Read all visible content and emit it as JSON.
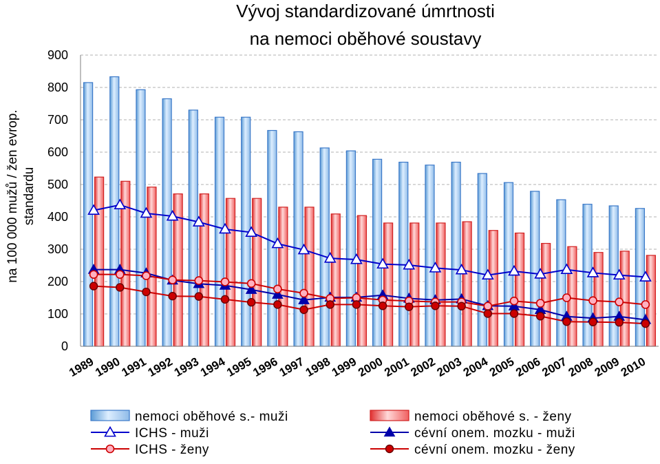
{
  "chart_data": {
    "type": "bar",
    "title": [
      "Vývoj standardizované úmrtnosti",
      "na nemoci oběhové soustavy"
    ],
    "ylabel": [
      "na 100 000 mužů / žen evrop.",
      "standardu"
    ],
    "xlabel": "",
    "ylim": [
      0,
      900
    ],
    "yticks": [
      0,
      100,
      200,
      300,
      400,
      500,
      600,
      700,
      800,
      900
    ],
    "grid": true,
    "legend_position": "bottom",
    "categories": [
      "1989",
      "1990",
      "1991",
      "1992",
      "1993",
      "1994",
      "1995",
      "1996",
      "1997",
      "1998",
      "1999",
      "2000",
      "2001",
      "2002",
      "2003",
      "2004",
      "2005",
      "2006",
      "2007",
      "2008",
      "2009",
      "2010"
    ],
    "series": [
      {
        "name": "nemoci oběhové s.- muži",
        "kind": "bar",
        "color": "#5b9bd5",
        "values": [
          815,
          833,
          793,
          765,
          730,
          708,
          708,
          667,
          663,
          613,
          604,
          578,
          569,
          560,
          569,
          534,
          506,
          479,
          453,
          439,
          434,
          426
        ]
      },
      {
        "name": "nemoci oběhové s. - ženy",
        "kind": "bar",
        "color": "#e03030",
        "values": [
          523,
          510,
          492,
          471,
          471,
          457,
          457,
          430,
          430,
          409,
          404,
          381,
          381,
          381,
          385,
          358,
          350,
          318,
          308,
          290,
          294,
          281
        ]
      },
      {
        "name": "ICHS - muži",
        "kind": "line",
        "marker": "triangle-open",
        "color": "#0000cc",
        "values": [
          420,
          437,
          411,
          402,
          384,
          362,
          352,
          317,
          298,
          272,
          268,
          254,
          251,
          242,
          236,
          220,
          232,
          223,
          237,
          227,
          220,
          214
        ]
      },
      {
        "name": "cévní onem. mozku - muži",
        "kind": "line",
        "marker": "triangle-filled",
        "color": "#0000aa",
        "values": [
          237,
          237,
          226,
          204,
          193,
          188,
          175,
          160,
          143,
          151,
          151,
          158,
          148,
          143,
          146,
          125,
          124,
          113,
          92,
          87,
          92,
          82
        ]
      },
      {
        "name": "ICHS - ženy",
        "kind": "line",
        "marker": "circle-open",
        "color": "#cc0000",
        "values": [
          222,
          222,
          218,
          205,
          203,
          199,
          194,
          177,
          164,
          148,
          150,
          143,
          140,
          137,
          137,
          124,
          140,
          133,
          150,
          141,
          137,
          129
        ]
      },
      {
        "name": "cévní onem. mozku - ženy",
        "kind": "line",
        "marker": "circle-filled",
        "color": "#cc0000",
        "values": [
          186,
          182,
          168,
          155,
          154,
          145,
          136,
          129,
          113,
          129,
          129,
          125,
          122,
          125,
          124,
          101,
          101,
          93,
          76,
          75,
          74,
          70
        ]
      }
    ]
  }
}
